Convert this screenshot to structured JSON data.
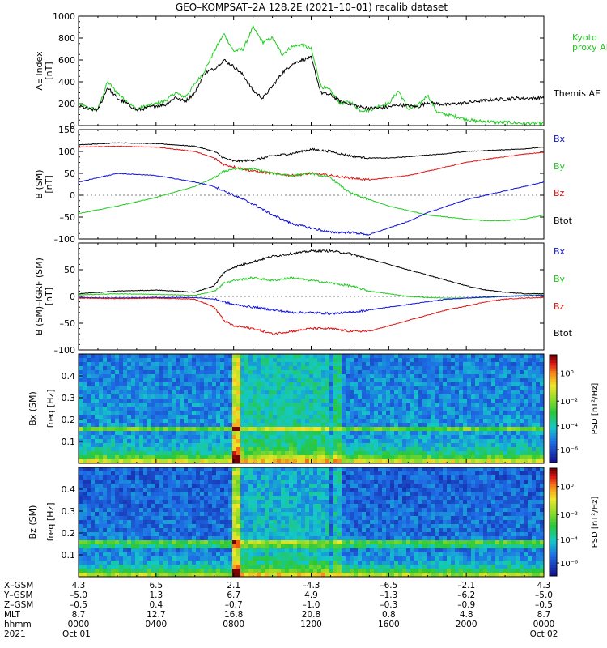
{
  "title": "GEO–KOMPSAT–2A 128.2E (2021–10–01) recalib dataset",
  "colors": {
    "black": "#000000",
    "green": "#22cc22",
    "red": "#dd1111",
    "blue": "#1111dd"
  },
  "chart_data": [
    {
      "type": "line",
      "ylabel_1": "AE Index",
      "ylabel_2": "[nT]",
      "yticks": [
        "0",
        "200",
        "400",
        "600",
        "800",
        "1000"
      ],
      "ylim": [
        0,
        1000
      ],
      "x_hours": [
        0,
        24
      ],
      "legend": [
        "Kyoto",
        "proxy AE",
        "Themis AE"
      ],
      "series": [
        {
          "name": "Kyoto proxy AE",
          "color": "green",
          "x": [
            0,
            0.5,
            1,
            1.5,
            2,
            2.5,
            3,
            3.5,
            4,
            4.5,
            5,
            5.5,
            6,
            6.5,
            7,
            7.5,
            8,
            8.5,
            9,
            9.5,
            10,
            10.5,
            11,
            11.5,
            12,
            12.5,
            13,
            13.5,
            14,
            14.5,
            15,
            15.5,
            16,
            16.5,
            17,
            17.5,
            18,
            18.5,
            19,
            19.5,
            20,
            20.5,
            21,
            21.5,
            22,
            22.5,
            23,
            23.5,
            24
          ],
          "y": [
            200,
            160,
            150,
            400,
            300,
            220,
            150,
            180,
            200,
            230,
            300,
            260,
            380,
            500,
            680,
            840,
            680,
            700,
            900,
            760,
            800,
            650,
            720,
            740,
            700,
            360,
            320,
            200,
            220,
            140,
            140,
            180,
            200,
            320,
            150,
            180,
            280,
            120,
            100,
            80,
            60,
            40,
            40,
            30,
            30,
            25,
            20,
            20,
            20
          ]
        },
        {
          "name": "Themis AE",
          "color": "black",
          "x": [
            0,
            0.5,
            1,
            1.5,
            2,
            2.5,
            3,
            3.5,
            4,
            4.5,
            5,
            5.5,
            6,
            6.5,
            7,
            7.5,
            8,
            8.5,
            9,
            9.5,
            10,
            10.5,
            11,
            11.5,
            12,
            12.5,
            13,
            13.5,
            14,
            14.5,
            15,
            15.5,
            16,
            16.5,
            17,
            17.5,
            18,
            18.5,
            19,
            19.5,
            20,
            20.5,
            21,
            21.5,
            22,
            22.5,
            23,
            23.5,
            24
          ],
          "y": [
            180,
            150,
            140,
            350,
            250,
            200,
            140,
            160,
            180,
            190,
            260,
            220,
            300,
            480,
            520,
            600,
            540,
            460,
            320,
            250,
            360,
            480,
            560,
            600,
            620,
            300,
            280,
            220,
            200,
            170,
            160,
            160,
            170,
            190,
            180,
            170,
            210,
            200,
            190,
            200,
            210,
            220,
            230,
            240,
            240,
            250,
            250,
            250,
            260
          ]
        }
      ]
    },
    {
      "type": "line",
      "ylabel_1": "B (SM)",
      "ylabel_2": "[nT]",
      "yticks": [
        "–100",
        "–50",
        "0",
        "50",
        "100",
        "150"
      ],
      "ylim": [
        -100,
        150
      ],
      "legend": [
        "Bx",
        "By",
        "Bz",
        "Btot"
      ],
      "series": [
        {
          "name": "Btot",
          "color": "black",
          "x": [
            0,
            2,
            4,
            6,
            7,
            7.5,
            8,
            9,
            10,
            11,
            12,
            13,
            14,
            15,
            16,
            17,
            18,
            19,
            20,
            21,
            22,
            23,
            24
          ],
          "y": [
            115,
            120,
            118,
            112,
            100,
            85,
            78,
            80,
            90,
            95,
            105,
            100,
            90,
            85,
            85,
            88,
            92,
            95,
            100,
            102,
            104,
            106,
            110
          ]
        },
        {
          "name": "Bz",
          "color": "red",
          "x": [
            0,
            2,
            4,
            6,
            7,
            7.5,
            8,
            9,
            10,
            11,
            12,
            13,
            14,
            15,
            16,
            17,
            18,
            19,
            20,
            21,
            22,
            23,
            24
          ],
          "y": [
            110,
            112,
            110,
            100,
            85,
            70,
            65,
            55,
            50,
            45,
            50,
            45,
            40,
            35,
            40,
            45,
            55,
            65,
            75,
            82,
            88,
            94,
            98
          ]
        },
        {
          "name": "By",
          "color": "green",
          "x": [
            0,
            2,
            4,
            6,
            7,
            7.5,
            8,
            9,
            10,
            11,
            12,
            13,
            14,
            15,
            16,
            17,
            18,
            19,
            20,
            21,
            22,
            23,
            24
          ],
          "y": [
            -42,
            -25,
            -5,
            20,
            40,
            55,
            60,
            60,
            50,
            45,
            50,
            40,
            5,
            -10,
            -25,
            -35,
            -45,
            -50,
            -55,
            -58,
            -58,
            -55,
            -45
          ]
        },
        {
          "name": "Bx",
          "color": "blue",
          "x": [
            0,
            2,
            4,
            6,
            7,
            7.5,
            8,
            9,
            10,
            11,
            12,
            13,
            14,
            15,
            16,
            17,
            18,
            19,
            20,
            21,
            22,
            23,
            24
          ],
          "y": [
            30,
            50,
            45,
            30,
            20,
            10,
            0,
            -20,
            -45,
            -65,
            -75,
            -85,
            -85,
            -90,
            -75,
            -60,
            -40,
            -25,
            -10,
            0,
            10,
            20,
            30
          ]
        }
      ]
    },
    {
      "type": "line",
      "ylabel_1": "B (SM)–IGRF (SM)",
      "ylabel_2": "[nT]",
      "yticks": [
        "–100",
        "–50",
        "0",
        "50"
      ],
      "ylim": [
        -100,
        100
      ],
      "legend": [
        "Bx",
        "By",
        "Bz",
        "Btot"
      ],
      "series": [
        {
          "name": "Btot",
          "color": "black",
          "x": [
            0,
            2,
            4,
            6,
            7,
            7.5,
            8,
            9,
            10,
            11,
            12,
            13,
            14,
            15,
            16,
            17,
            18,
            19,
            20,
            21,
            22,
            23,
            24
          ],
          "y": [
            5,
            10,
            12,
            8,
            20,
            45,
            55,
            65,
            75,
            80,
            85,
            85,
            80,
            70,
            60,
            50,
            40,
            30,
            20,
            12,
            8,
            5,
            5
          ]
        },
        {
          "name": "By",
          "color": "green",
          "x": [
            0,
            2,
            4,
            6,
            7,
            7.5,
            8,
            9,
            10,
            11,
            12,
            13,
            14,
            15,
            16,
            17,
            18,
            19,
            20,
            21,
            22,
            23,
            24
          ],
          "y": [
            3,
            5,
            4,
            2,
            10,
            25,
            30,
            35,
            30,
            35,
            30,
            25,
            20,
            10,
            5,
            0,
            -2,
            -3,
            -3,
            -2,
            0,
            2,
            3
          ]
        },
        {
          "name": "Bx",
          "color": "blue",
          "x": [
            0,
            2,
            4,
            6,
            7,
            7.5,
            8,
            9,
            10,
            11,
            12,
            13,
            14,
            15,
            16,
            17,
            18,
            19,
            20,
            21,
            22,
            23,
            24
          ],
          "y": [
            -2,
            -3,
            -2,
            -2,
            -5,
            -10,
            -15,
            -20,
            -25,
            -30,
            -30,
            -32,
            -30,
            -25,
            -20,
            -15,
            -10,
            -5,
            -3,
            -1,
            0,
            1,
            2
          ]
        },
        {
          "name": "Bz",
          "color": "red",
          "x": [
            0,
            2,
            4,
            6,
            7,
            7.5,
            8,
            9,
            10,
            11,
            12,
            13,
            14,
            15,
            16,
            17,
            18,
            19,
            20,
            21,
            22,
            23,
            24
          ],
          "y": [
            -3,
            -4,
            -3,
            -5,
            -20,
            -45,
            -55,
            -60,
            -70,
            -65,
            -60,
            -60,
            -65,
            -65,
            -55,
            -45,
            -35,
            -25,
            -18,
            -10,
            -5,
            -3,
            -2
          ]
        }
      ]
    },
    {
      "type": "heatmap",
      "component_label": "Bx (SM)",
      "ylabel": "freq [Hz]",
      "yticks": [
        "0.1",
        "0.2",
        "0.3",
        "0.4"
      ],
      "ylim": [
        0,
        0.5
      ],
      "colorbar_label": "PSD [nT²/Hz]",
      "colorbar_ticks": [
        "10⁰",
        "10⁻²",
        "10⁻⁴",
        "10⁻⁶"
      ]
    },
    {
      "type": "heatmap",
      "component_label": "Bz (SM)",
      "ylabel": "freq [Hz]",
      "yticks": [
        "0.1",
        "0.2",
        "0.3",
        "0.4"
      ],
      "ylim": [
        0,
        0.5
      ],
      "colorbar_label": "PSD [nT²/Hz]",
      "colorbar_ticks": [
        "10⁰",
        "10⁻²",
        "10⁻⁴",
        "10⁻⁶"
      ]
    }
  ],
  "orbit_table": {
    "row_labels": [
      "X–GSM",
      "Y–GSM",
      "Z–GSM",
      "MLT",
      "hhmm",
      "2021"
    ],
    "columns": [
      [
        "4.3",
        "–5.0",
        "–0.5",
        "8.7",
        "0000",
        "Oct 01"
      ],
      [
        "6.5",
        "1.3",
        "0.4",
        "12.7",
        "0400",
        ""
      ],
      [
        "2.1",
        "6.7",
        "–0.7",
        "16.8",
        "0800",
        ""
      ],
      [
        "–4.3",
        "4.9",
        "–1.0",
        "20.8",
        "1200",
        ""
      ],
      [
        "–6.5",
        "–1.3",
        "–0.3",
        "0.8",
        "1600",
        ""
      ],
      [
        "–2.1",
        "–6.2",
        "–0.9",
        "4.8",
        "2000",
        ""
      ],
      [
        "4.3",
        "–5.0",
        "–0.5",
        "8.7",
        "0000",
        "Oct 02"
      ]
    ]
  }
}
